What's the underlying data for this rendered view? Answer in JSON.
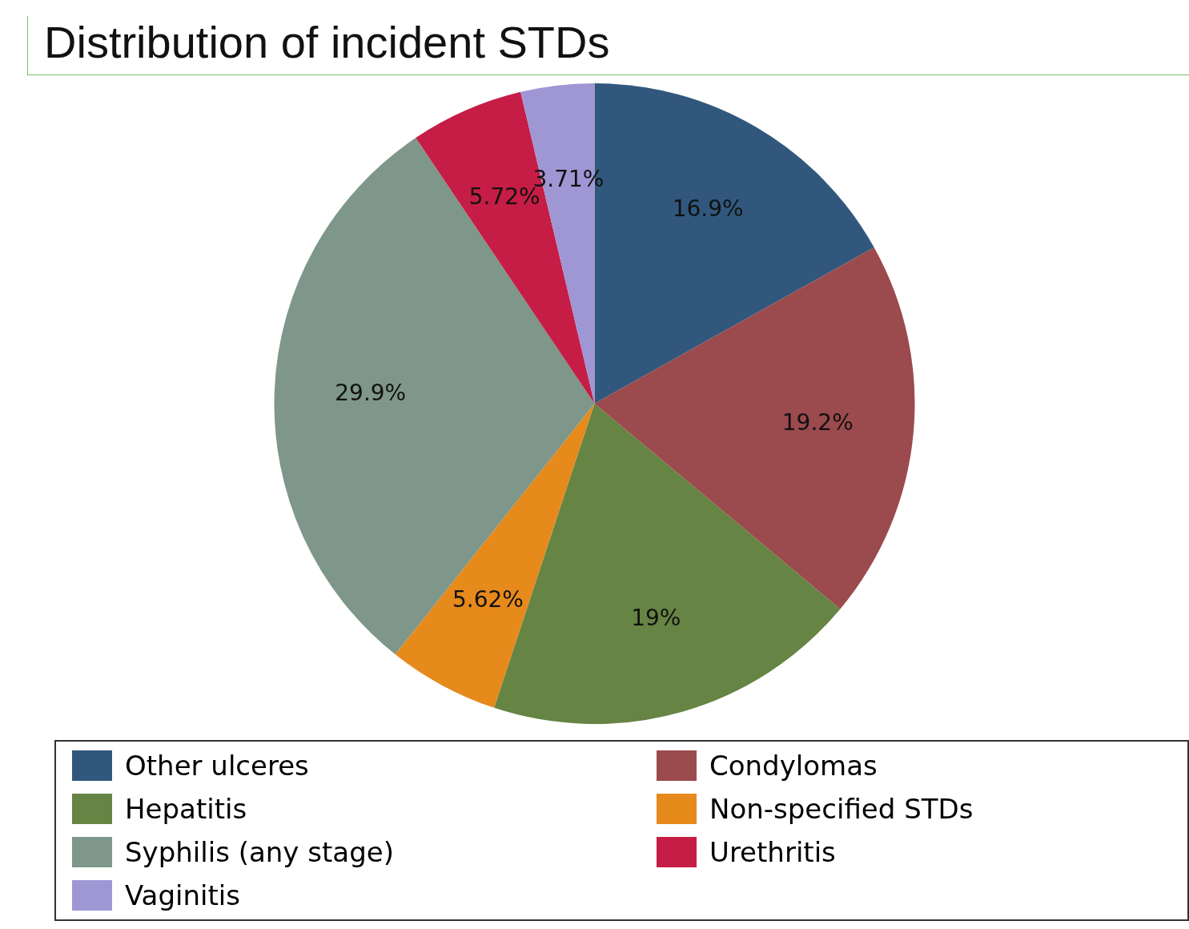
{
  "chart_data": {
    "type": "pie",
    "title": "Distribution of incident STDs",
    "categories": [
      "Other ulceres",
      "Condylomas",
      "Hepatitis",
      "Non-specified STDs",
      "Syphilis (any stage)",
      "Urethritis",
      "Vaginitis"
    ],
    "values": [
      16.9,
      19.2,
      19,
      5.62,
      29.9,
      5.72,
      3.71
    ],
    "value_labels": [
      "16.9%",
      "19.2%",
      "19%",
      "5.62%",
      "29.9%",
      "5.72%",
      "3.71%"
    ],
    "colors": [
      "#31587c",
      "#9b4a4e",
      "#668443",
      "#e68a1c",
      "#7e978a",
      "#c51d45",
      "#9f96d4"
    ],
    "legend": "bottom"
  }
}
